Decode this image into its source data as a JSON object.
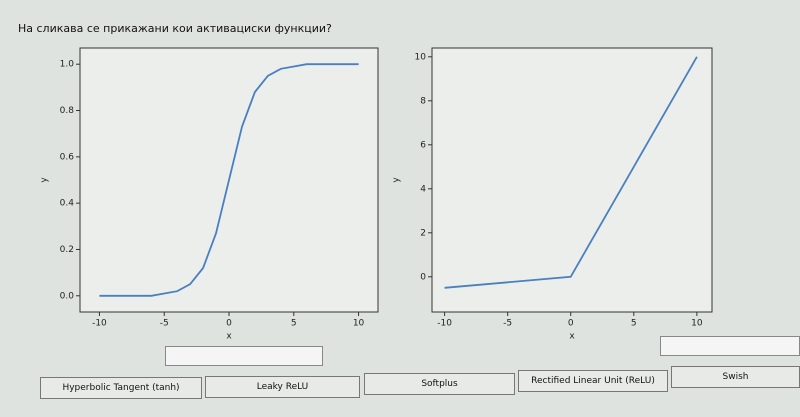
{
  "question": "На сликава се прикажани кои активациски функции?",
  "chart_data": [
    {
      "type": "line",
      "xlabel": "x",
      "ylabel": "y",
      "color": "#4a7fc0",
      "x": [
        -10,
        -9,
        -8,
        -7,
        -6,
        -5,
        -4,
        -3,
        -2,
        -1,
        0,
        1,
        2,
        3,
        4,
        5,
        6,
        7,
        8,
        9,
        10
      ],
      "values": [
        0,
        0,
        0,
        0,
        0,
        0.01,
        0.02,
        0.05,
        0.12,
        0.27,
        0.5,
        0.73,
        0.88,
        0.95,
        0.98,
        0.99,
        1,
        1,
        1,
        1,
        1
      ],
      "xlim": [
        -11.5,
        11.5
      ],
      "ylim": [
        -0.07,
        1.07
      ],
      "xticks": [
        -10,
        -5,
        0,
        5,
        10
      ],
      "yticks": [
        {
          "value": 0,
          "label": "0.0"
        },
        0.2,
        0.4,
        0.6,
        0.8,
        {
          "value": 1,
          "label": "1.0"
        }
      ]
    },
    {
      "type": "line",
      "xlabel": "x",
      "ylabel": "y",
      "color": "#4a7fc0",
      "x": [
        -10,
        -5,
        0,
        5,
        10
      ],
      "values": [
        -0.5,
        -0.25,
        0,
        5,
        10
      ],
      "xlim": [
        -11,
        11.2
      ],
      "ylim": [
        -1.6,
        10.4
      ],
      "xticks": [
        -10,
        -5,
        0,
        5,
        10
      ],
      "yticks": [
        0,
        2,
        4,
        6,
        8,
        10
      ]
    }
  ],
  "buttons": [
    "Hyperbolic Tangent (tanh)",
    "Leaky ReLU",
    "Softplus",
    "Rectified Linear Unit (ReLU)",
    "Swish"
  ]
}
